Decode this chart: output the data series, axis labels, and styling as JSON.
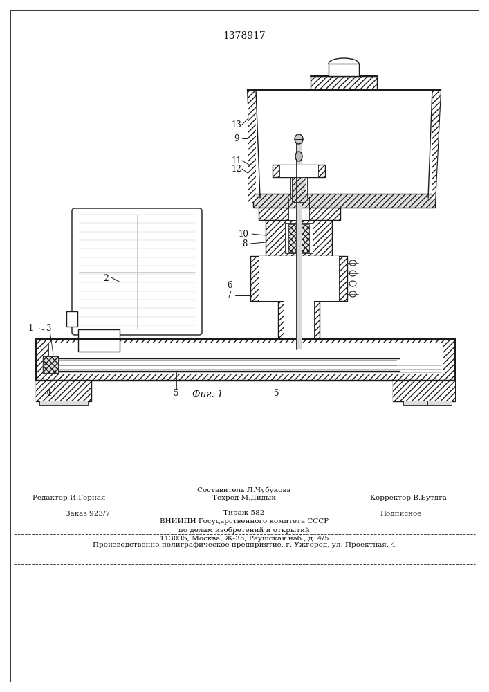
{
  "patent_number": "1378917",
  "fig_label": "Фиг. 1",
  "bg_color": "#ffffff",
  "line_color": "#1a1a1a",
  "footer_line1_left": "Редактор И.Горная",
  "footer_line1_center": "Составитель Л.Чубукова",
  "footer_line1_right": "Корректор В.Бутяга",
  "footer_techred": "Техред М.Дидык",
  "footer_order": "Заказ 923/7",
  "footer_tirazh": "Тираж 582",
  "footer_podpisnoe": "Подписное",
  "footer_vniipii": "ВНИИПИ Государственного комитета СССР",
  "footer_dela": "по делам изобретений и открытий",
  "footer_addr": "113035, Москва, Ж-35, Раушская наб., д. 4/5",
  "footer_factory": "Производственно-полиграфическое предприятие, г. Ужгород, ул. Проектная, 4"
}
